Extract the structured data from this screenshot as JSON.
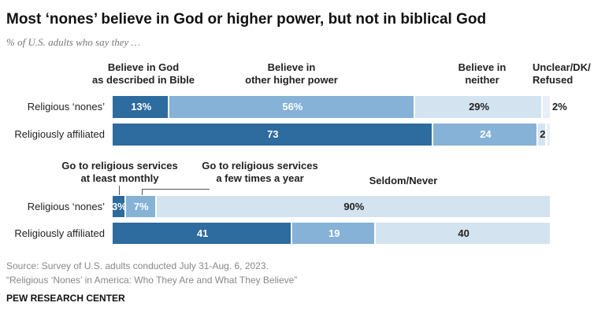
{
  "title": "Most ‘nones’ believe in God or higher power, but not in biblical God",
  "subtitle": "% of U.S. adults who say they …",
  "source": "Source: Survey of U.S. adults conducted July 31-Aug. 6, 2023.",
  "note": "“Religious ‘Nones’ in America: Who They Are and What They Believe”",
  "footer": "PEW RESEARCH CENTER",
  "chart_data": [
    {
      "type": "stacked_bar_horizontal",
      "categories": [
        "Religious ‘nones’",
        "Religiously affiliated"
      ],
      "series": [
        {
          "name": "Believe in God\nas described in Bible",
          "color": "#2e6b9e",
          "values": [
            13,
            73
          ],
          "value_labels": [
            "13%",
            "73"
          ]
        },
        {
          "name": "Believe in\nother higher power",
          "color": "#85b2d6",
          "values": [
            56,
            24
          ],
          "value_labels": [
            "56%",
            "24"
          ]
        },
        {
          "name": "Believe in\nneither",
          "color": "#d4e3f0",
          "values": [
            29,
            2
          ],
          "value_labels": [
            "29%",
            "2"
          ]
        },
        {
          "name": "Unclear/DK/\nRefused",
          "color": "#e9eff6",
          "values": [
            2,
            1
          ],
          "value_labels": [
            "2%",
            null
          ]
        }
      ]
    },
    {
      "type": "stacked_bar_horizontal",
      "categories": [
        "Religious ‘nones’",
        "Religiously affiliated"
      ],
      "series": [
        {
          "name": "Go to religious services\nat least monthly",
          "color": "#2e6b9e",
          "values": [
            3,
            41
          ],
          "value_labels": [
            "3%",
            "41"
          ]
        },
        {
          "name": "Go to religious services\na few times a year",
          "color": "#85b2d6",
          "values": [
            7,
            19
          ],
          "value_labels": [
            "7%",
            "19"
          ]
        },
        {
          "name": "Seldom/Never",
          "color": "#d4e3f0",
          "values": [
            90,
            40
          ],
          "value_labels": [
            "90%",
            "40"
          ]
        }
      ]
    }
  ]
}
